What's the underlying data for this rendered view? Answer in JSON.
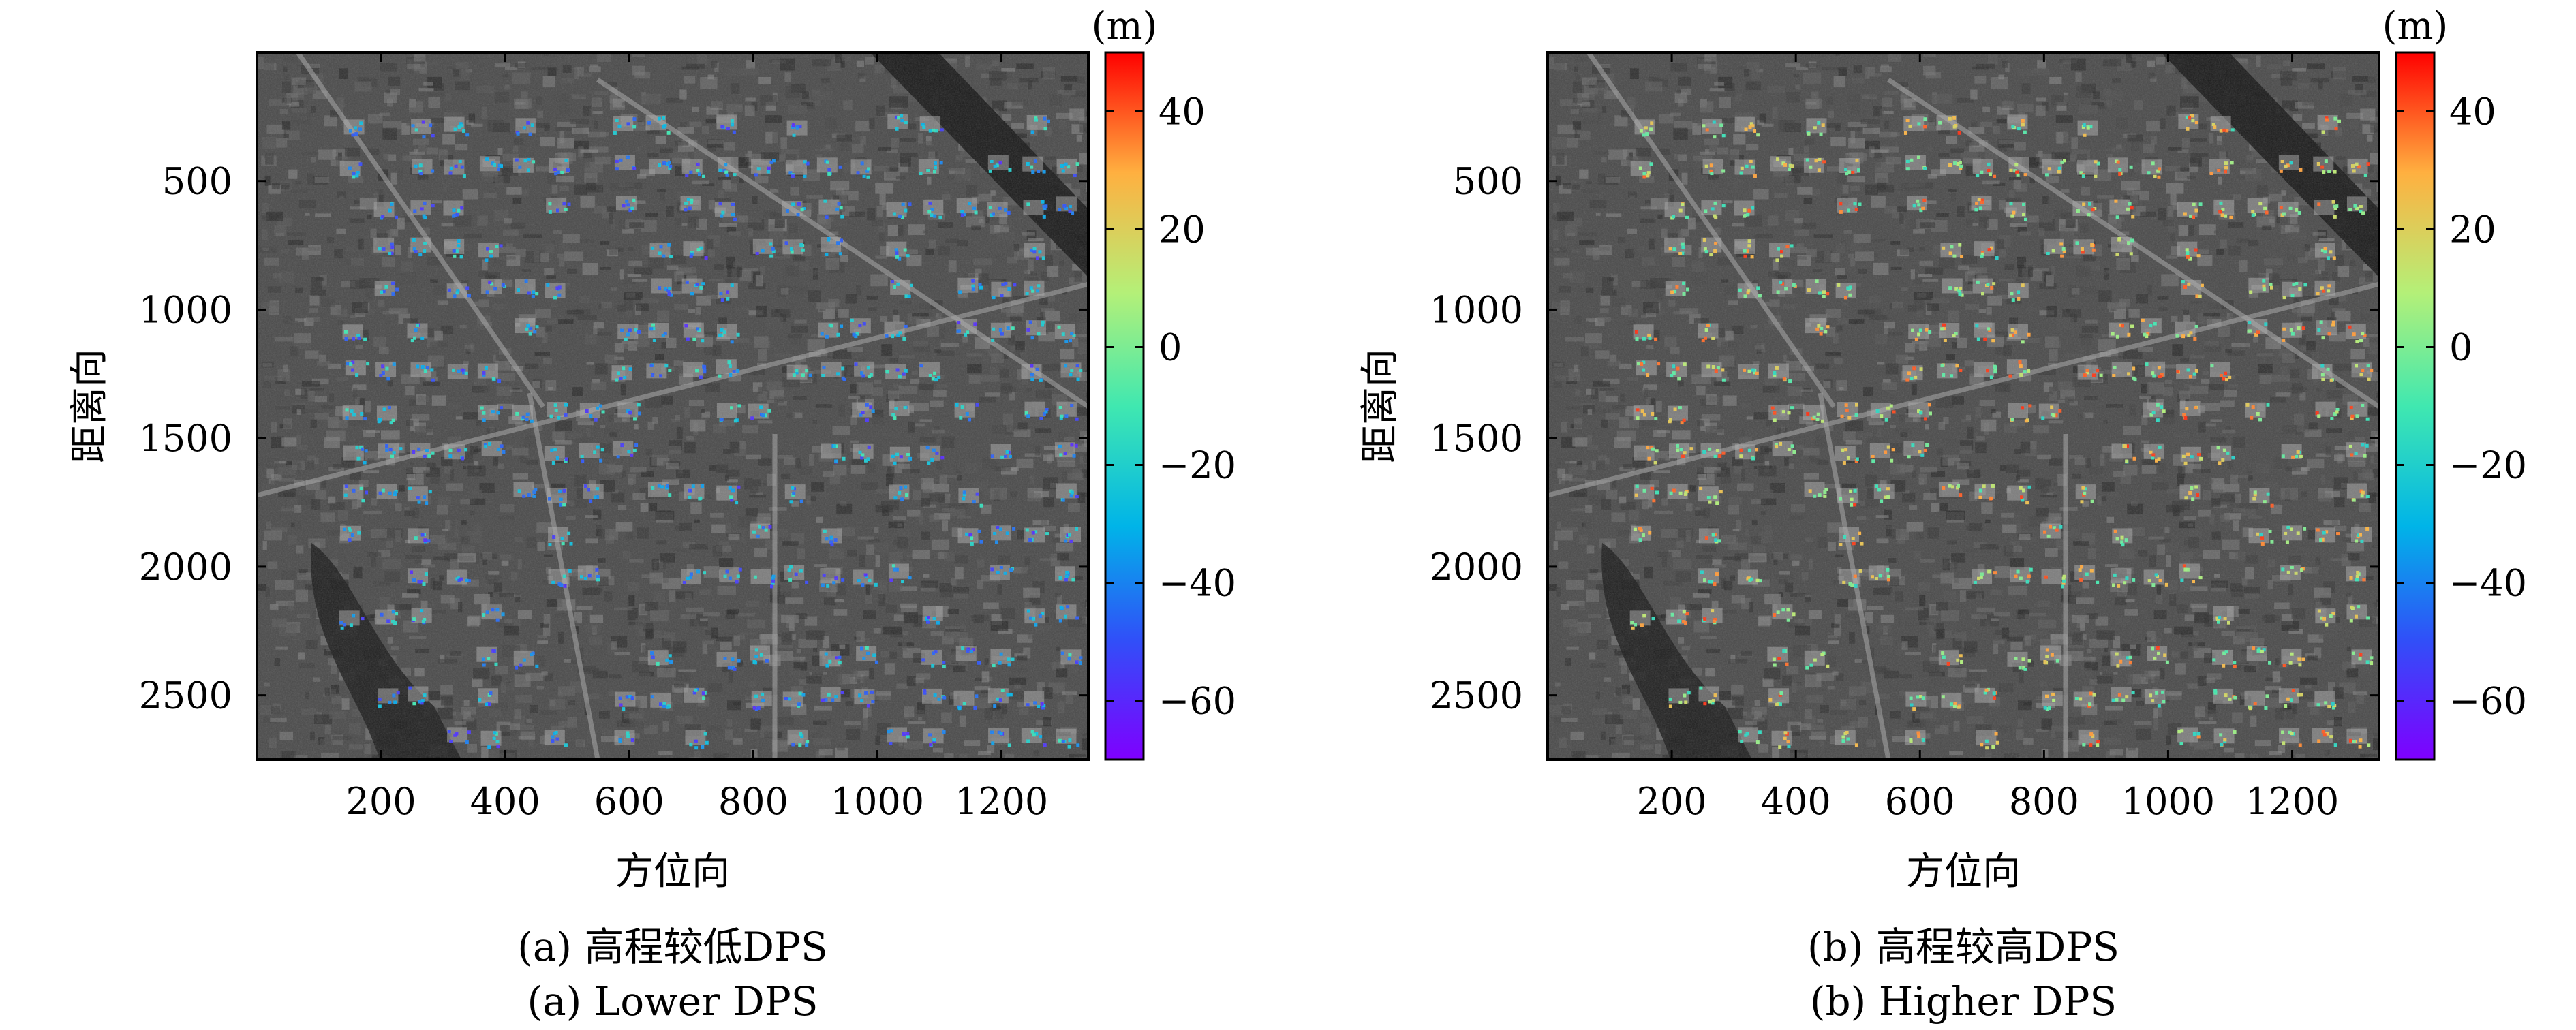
{
  "chart_data": [
    {
      "type": "heatmap",
      "xlabel": "方位向",
      "ylabel": "距离向",
      "xticks": [
        200,
        400,
        600,
        800,
        1000,
        1200
      ],
      "yticks": [
        500,
        1000,
        1500,
        2000,
        2500
      ],
      "xlim": [
        0,
        1340
      ],
      "ylim": [
        2750,
        0
      ],
      "colorbar": {
        "unit": "(m)",
        "ticks": [
          40,
          20,
          0,
          -20,
          -40,
          -60
        ],
        "range": [
          -70,
          50
        ],
        "colormap": "rainbow"
      },
      "caption_cn": "(a) 高程较低DPS",
      "caption_en": "(a) Lower DPS",
      "overlay_hue_range": [
        -60,
        -10
      ]
    },
    {
      "type": "heatmap",
      "xlabel": "方位向",
      "ylabel": "距离向",
      "xticks": [
        200,
        400,
        600,
        800,
        1000,
        1200
      ],
      "yticks": [
        500,
        1000,
        1500,
        2000,
        2500
      ],
      "xlim": [
        0,
        1340
      ],
      "ylim": [
        2750,
        0
      ],
      "colorbar": {
        "unit": "(m)",
        "ticks": [
          40,
          20,
          0,
          -20,
          -40,
          -60
        ],
        "range": [
          -70,
          50
        ],
        "colormap": "rainbow"
      },
      "caption_cn": "(b) 高程较高DPS",
      "caption_en": "(b) Higher DPS",
      "overlay_hue_range": [
        -20,
        45
      ]
    }
  ],
  "colors": {
    "background": "#ffffff",
    "sar_gray_dark": "#1e1e1e",
    "sar_gray_light": "#9a9a9a"
  }
}
